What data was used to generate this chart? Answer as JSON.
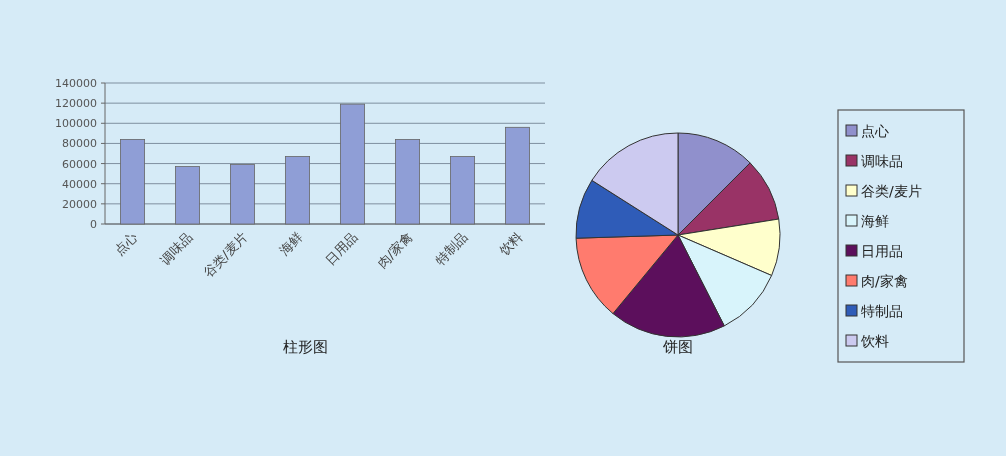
{
  "chart_data": [
    {
      "type": "bar",
      "title": "柱形图",
      "categories": [
        "点心",
        "调味品",
        "谷类/麦片",
        "海鲜",
        "日用品",
        "肉/家禽",
        "特制品",
        "饮料"
      ],
      "values": [
        84000,
        57000,
        59000,
        67000,
        119000,
        84000,
        67000,
        96000
      ],
      "color": "#8f9ed6",
      "ylim": [
        0,
        140000
      ],
      "yticks": [
        0,
        20000,
        40000,
        60000,
        80000,
        100000,
        120000,
        140000
      ],
      "grid": "y"
    },
    {
      "type": "pie",
      "title": "饼图",
      "categories": [
        "点心",
        "调味品",
        "谷类/麦片",
        "海鲜",
        "日用品",
        "肉/家禽",
        "特制品",
        "饮料"
      ],
      "values": [
        12.5,
        10,
        9,
        11,
        18.5,
        13.5,
        9.5,
        16
      ],
      "colors": [
        "#9090cc",
        "#993366",
        "#ffffcc",
        "#d8f4fb",
        "#5c0f5c",
        "#ff7b6e",
        "#2f5cb8",
        "#cccaf0"
      ],
      "legend": "right"
    }
  ]
}
